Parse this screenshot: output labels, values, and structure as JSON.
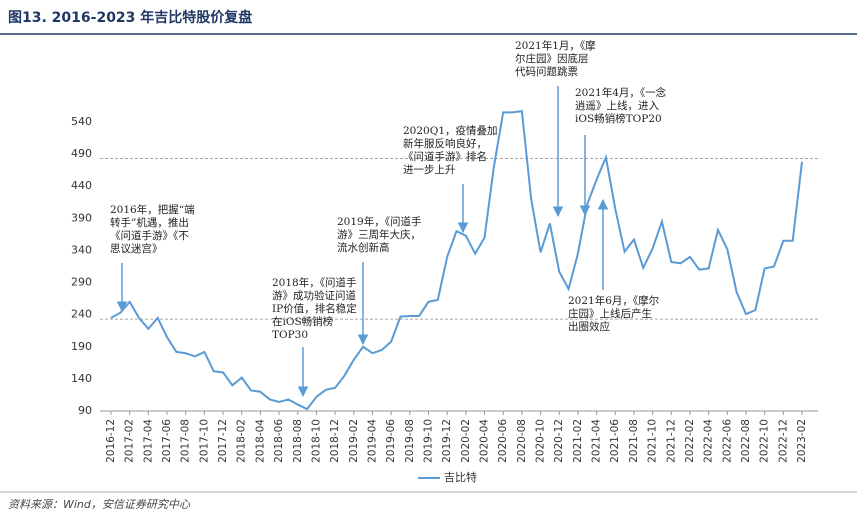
{
  "chart_data": {
    "type": "line",
    "title": "图13. 2016-2023 年吉比特股价复盘",
    "source": "资料来源：Wind，安信证券研究中心",
    "categories": [
      "2016-12",
      null,
      "2017-02",
      null,
      "2017-04",
      null,
      "2017-06",
      null,
      "2017-08",
      null,
      "2017-10",
      null,
      "2017-12",
      null,
      "2018-02",
      null,
      "2018-04",
      null,
      "2018-06",
      null,
      "2018-08",
      null,
      "2018-10",
      null,
      "2018-12",
      null,
      "2019-02",
      null,
      "2019-04",
      null,
      "2019-06",
      null,
      "2019-08",
      null,
      "2019-10",
      null,
      "2019-12",
      null,
      "2020-02",
      null,
      "2020-04",
      null,
      "2020-06",
      null,
      "2020-08",
      null,
      "2020-10",
      null,
      "2020-12",
      null,
      "2021-02",
      null,
      "2021-04",
      null,
      "2021-06",
      null,
      "2021-08",
      null,
      "2021-10",
      null,
      "2021-12",
      null,
      "2022-02",
      null,
      "2022-04",
      null,
      "2022-06",
      null,
      "2022-08",
      null,
      "2022-10",
      null,
      "2022-12",
      null,
      "2023-02"
    ],
    "series": [
      {
        "name": "吉比特",
        "color": "#5b9bd5",
        "values": [
          235,
          243,
          260,
          235,
          218,
          235,
          205,
          182,
          180,
          175,
          182,
          152,
          150,
          130,
          142,
          122,
          120,
          108,
          104,
          108,
          100,
          93,
          112,
          123,
          126,
          145,
          170,
          190,
          180,
          185,
          198,
          237,
          238,
          238,
          260,
          263,
          330,
          370,
          363,
          335,
          360,
          470,
          555,
          555,
          557,
          420,
          337,
          382,
          307,
          280,
          335,
          412,
          450,
          485,
          405,
          338,
          357,
          313,
          343,
          385,
          322,
          320,
          330,
          310,
          312,
          372,
          342,
          275,
          241,
          247,
          312,
          315,
          355,
          355,
          478
        ]
      }
    ],
    "ylim": [
      90,
      560
    ],
    "yticks": [
      90,
      140,
      190,
      240,
      290,
      340,
      390,
      440,
      490,
      540
    ],
    "reference_lines": [
      483,
      233
    ],
    "legend": "bottom",
    "annotations": [
      [
        "2016年，把握“端",
        "转手”机遇，推出",
        "《问道手游》《不",
        "思议迷宫》"
      ],
      [
        "2018年，《问道手",
        "游》成功验证问道",
        "IP价值，排名稳定",
        "在iOS畅销榜",
        "TOP30"
      ],
      [
        "2019年，《问道手",
        "游》三周年大庆，",
        "流水创新高"
      ],
      [
        "2020Q1，疫情叠加",
        "新年服反响良好，",
        "《问道手游》排名",
        "进一步上升"
      ],
      [
        "2021年1月，《摩",
        "尔庄园》因底层",
        "代码问题跳票"
      ],
      [
        "2021年4月，《一念",
        "逍遥》上线，进入",
        "iOS畅销榜TOP20"
      ],
      [
        "2021年6月，《摩尔",
        "庄园》上线后产生",
        "出圈效应"
      ]
    ]
  }
}
